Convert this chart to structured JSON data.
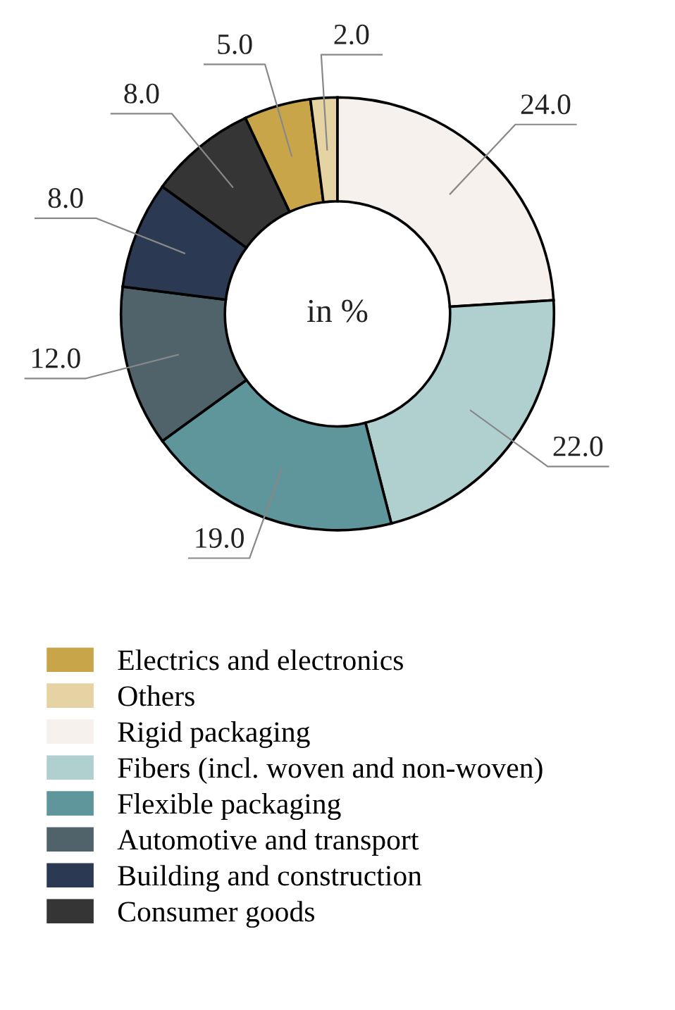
{
  "chart_data": {
    "type": "donut",
    "categories": [
      "Electrics and electronics",
      "Others",
      "Rigid packaging",
      "Fibers (incl. woven and non-woven)",
      "Flexible packaging",
      "Automotive and transport",
      "Building and construction",
      "Consumer goods"
    ],
    "values": [
      5.0,
      2.0,
      24.0,
      22.0,
      19.0,
      12.0,
      8.0,
      8.0
    ],
    "value_labels": [
      "5.0",
      "2.0",
      "24.0",
      "22.0",
      "19.0",
      "12.0",
      "8.0",
      "8.0"
    ],
    "colors": [
      "#c9a54a",
      "#e6d3a3",
      "#f7f1ed",
      "#b0cfcf",
      "#5f969b",
      "#50636b",
      "#2b3a52",
      "#353535"
    ],
    "annotations": [
      "in %"
    ],
    "legend": "bottom"
  }
}
